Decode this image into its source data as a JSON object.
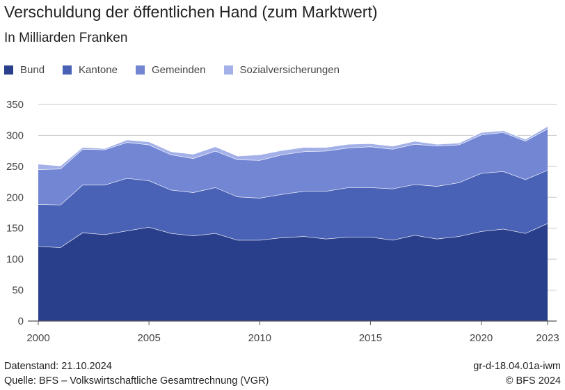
{
  "header": {
    "title": "Verschuldung der öffentlichen Hand (zum Marktwert)",
    "subtitle": "In Milliarden Franken"
  },
  "footer": {
    "datenstand": "Datenstand: 21.10.2024",
    "quelle": "Quelle: BFS – Volkswirtschaftliche Gesamtrechnung (VGR)",
    "code": "gr-d-18.04.01a-iwm",
    "copyright": "© BFS 2024"
  },
  "chart_data": {
    "type": "area",
    "stacked": true,
    "title": "Verschuldung der öffentlichen Hand (zum Marktwert)",
    "subtitle": "In Milliarden Franken",
    "xlabel": "",
    "ylabel": "",
    "x": [
      2000,
      2001,
      2002,
      2003,
      2004,
      2005,
      2006,
      2007,
      2008,
      2009,
      2010,
      2011,
      2012,
      2013,
      2014,
      2015,
      2016,
      2017,
      2018,
      2019,
      2020,
      2021,
      2022,
      2023
    ],
    "x_ticks": [
      "2000",
      "2005",
      "2010",
      "2015",
      "2020",
      "2023"
    ],
    "y_ticks": [
      0,
      50,
      100,
      150,
      200,
      250,
      300,
      350
    ],
    "ylim": [
      0,
      350
    ],
    "grid": true,
    "legend_position": "top-left",
    "series": [
      {
        "name": "Bund",
        "color": "#2a3f8b",
        "values": [
          121,
          119,
          143,
          140,
          146,
          152,
          142,
          138,
          142,
          131,
          131,
          135,
          137,
          133,
          136,
          136,
          131,
          139,
          133,
          137,
          145,
          149,
          142,
          158
        ]
      },
      {
        "name": "Kantone",
        "color": "#4a62b5",
        "values": [
          68,
          69,
          77,
          80,
          85,
          75,
          70,
          70,
          74,
          70,
          68,
          70,
          73,
          77,
          80,
          80,
          83,
          82,
          85,
          87,
          94,
          93,
          87,
          86
        ]
      },
      {
        "name": "Gemeinden",
        "color": "#7286d4",
        "values": [
          56,
          58,
          58,
          57,
          58,
          58,
          57,
          55,
          59,
          60,
          61,
          64,
          64,
          65,
          64,
          66,
          64,
          65,
          65,
          61,
          62,
          63,
          62,
          67
        ]
      },
      {
        "name": "Sozialversicherungen",
        "color": "#a3b1e8",
        "values": [
          9,
          5,
          3,
          2,
          4,
          5,
          5,
          7,
          7,
          6,
          9,
          7,
          7,
          6,
          6,
          5,
          5,
          5,
          3,
          3,
          4,
          3,
          3,
          4
        ]
      }
    ]
  }
}
